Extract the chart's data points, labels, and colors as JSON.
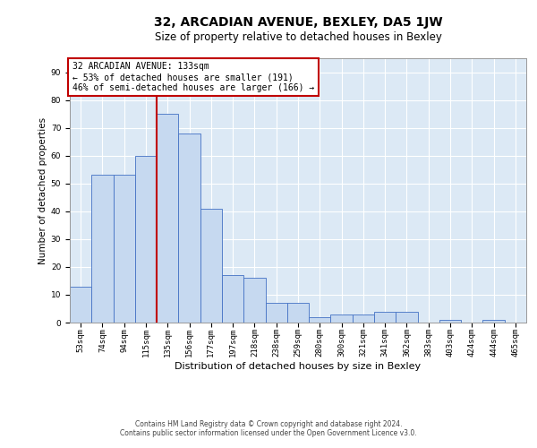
{
  "title": "32, ARCADIAN AVENUE, BEXLEY, DA5 1JW",
  "subtitle": "Size of property relative to detached houses in Bexley",
  "xlabel": "Distribution of detached houses by size in Bexley",
  "ylabel": "Number of detached properties",
  "bar_labels": [
    "53sqm",
    "74sqm",
    "94sqm",
    "115sqm",
    "135sqm",
    "156sqm",
    "177sqm",
    "197sqm",
    "218sqm",
    "238sqm",
    "259sqm",
    "280sqm",
    "300sqm",
    "321sqm",
    "341sqm",
    "362sqm",
    "383sqm",
    "403sqm",
    "424sqm",
    "444sqm",
    "465sqm"
  ],
  "bar_values": [
    13,
    53,
    53,
    60,
    75,
    68,
    41,
    17,
    16,
    7,
    7,
    2,
    3,
    3,
    4,
    4,
    0,
    1,
    0,
    1,
    0
  ],
  "bar_color": "#c6d9f0",
  "bar_edge_color": "#4472c4",
  "vline_color": "#c00000",
  "vline_x_index": 4,
  "annotation_text": "32 ARCADIAN AVENUE: 133sqm\n← 53% of detached houses are smaller (191)\n46% of semi-detached houses are larger (166) →",
  "annotation_box_color": "#ffffff",
  "annotation_box_edge_color": "#c00000",
  "ylim": [
    0,
    95
  ],
  "yticks": [
    0,
    10,
    20,
    30,
    40,
    50,
    60,
    70,
    80,
    90
  ],
  "background_color": "#dce9f5",
  "footer_line1": "Contains HM Land Registry data © Crown copyright and database right 2024.",
  "footer_line2": "Contains public sector information licensed under the Open Government Licence v3.0.",
  "title_fontsize": 10,
  "subtitle_fontsize": 8.5,
  "xlabel_fontsize": 8,
  "ylabel_fontsize": 7.5,
  "tick_fontsize": 6.5,
  "annotation_fontsize": 7,
  "footer_fontsize": 5.5
}
